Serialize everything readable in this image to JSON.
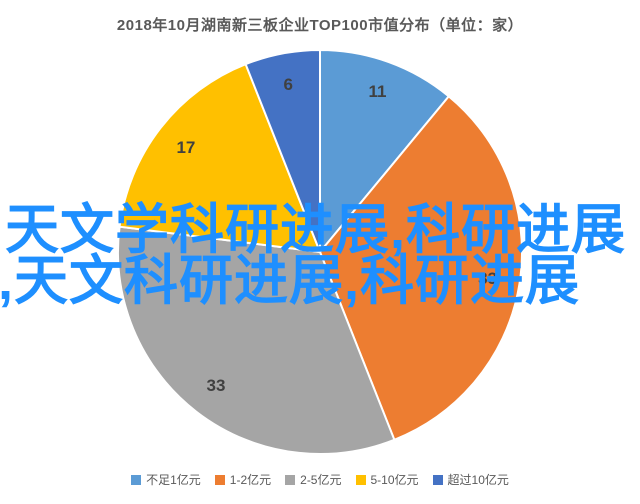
{
  "chart_data": {
    "type": "pie",
    "title": "2018年10月湖南新三板企业TOP100市值分布（单位：家）",
    "unit": "家",
    "total": 100,
    "direction": "clockwise",
    "start_angle_deg": 0,
    "legend_position": "bottom",
    "data_label_color": "#404040",
    "slices": [
      {
        "label": "不足1亿元",
        "value": 11,
        "color": "#5B9BD5"
      },
      {
        "label": "1-2亿元",
        "value": 33,
        "color": "#ED7D31"
      },
      {
        "label": "2-5亿元",
        "value": 33,
        "color": "#A5A5A5"
      },
      {
        "label": "5-10亿元",
        "value": 17,
        "color": "#FFC000"
      },
      {
        "label": "超过10亿元",
        "value": 6,
        "color": "#4472C4"
      }
    ]
  },
  "watermark": {
    "line1": "天文学科研进展,科研进展",
    "line2": ",天文科研进展,科研进展",
    "color": "#1e8fff"
  }
}
